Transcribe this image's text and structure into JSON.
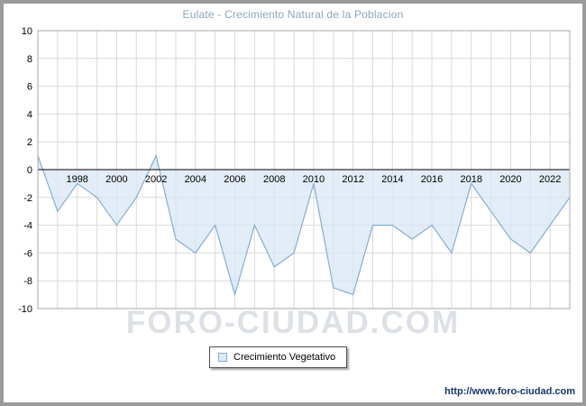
{
  "title": "Eulate - Crecimiento Natural de la Poblacion",
  "watermark": "FORO-CIUDAD.COM",
  "footer_url": "http://www.foro-ciudad.com",
  "legend": {
    "label": "Crecimiento Vegetativo"
  },
  "colors": {
    "line": "#86aed4",
    "fill": "#d8e7f5",
    "grid": "#d9d9d9",
    "zero_axis": "#000000",
    "plot_border": "#aaaaaa",
    "axis_text": "#000000",
    "title_text": "#8ca6bd",
    "watermark_text": "#cbd1d8",
    "url_text": "#16356b",
    "frame_border": "#9a9a9a"
  },
  "chart_data": {
    "type": "area",
    "title": "Eulate - Crecimiento Natural de la Poblacion",
    "xlabel": "",
    "ylabel": "",
    "ylim": [
      -10,
      10
    ],
    "ytick_step": 2,
    "grid": true,
    "legend_position": "bottom-left",
    "x": [
      1996,
      1997,
      1998,
      1999,
      2000,
      2001,
      2002,
      2003,
      2004,
      2005,
      2006,
      2007,
      2008,
      2009,
      2010,
      2011,
      2012,
      2013,
      2014,
      2015,
      2016,
      2017,
      2018,
      2019,
      2020,
      2021,
      2022,
      2023
    ],
    "series": [
      {
        "name": "Crecimiento Vegetativo",
        "values": [
          1,
          -3,
          -1,
          -2,
          -4,
          -2,
          1,
          -5,
          -6,
          -4,
          -9,
          -4,
          -7,
          -6,
          -1,
          -8.5,
          -9,
          -4,
          -4,
          -5,
          -4,
          -6,
          -1,
          -3,
          -5,
          -6,
          -4,
          -2
        ]
      }
    ],
    "xtick_labels": [
      "1998",
      "2000",
      "2002",
      "2004",
      "2006",
      "2008",
      "2010",
      "2012",
      "2014",
      "2016",
      "2018",
      "2020",
      "2022"
    ],
    "ytick_labels": [
      "10",
      "8",
      "6",
      "4",
      "2",
      "0",
      "-2",
      "-4",
      "-6",
      "-8",
      "-10"
    ]
  }
}
